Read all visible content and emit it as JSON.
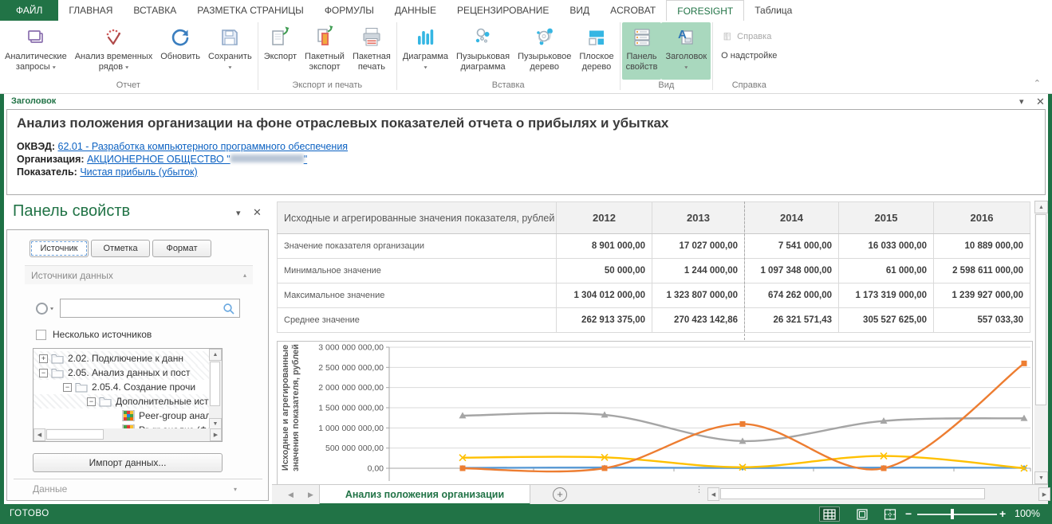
{
  "ribbon_tabs": [
    {
      "label": "ФАЙЛ",
      "style": "file"
    },
    {
      "label": "ГЛАВНАЯ"
    },
    {
      "label": "ВСТАВКА"
    },
    {
      "label": "РАЗМЕТКА СТРАНИЦЫ"
    },
    {
      "label": "ФОРМУЛЫ"
    },
    {
      "label": "ДАННЫЕ"
    },
    {
      "label": "РЕЦЕНЗИРОВАНИЕ"
    },
    {
      "label": "ВИД"
    },
    {
      "label": "ACROBAT"
    },
    {
      "label": "FORESIGHT",
      "active": true
    },
    {
      "label": "Таблица"
    }
  ],
  "ribbon_groups": [
    {
      "label": "Отчет",
      "buttons": [
        {
          "name": "analytic-queries",
          "icon": "analytic-queries",
          "lines": [
            "Аналитические",
            "запросы"
          ],
          "dropdown": "inline"
        },
        {
          "name": "time-series",
          "icon": "time-series",
          "lines": [
            "Анализ временных",
            "рядов"
          ],
          "dropdown": "inline"
        },
        {
          "name": "refresh",
          "icon": "refresh",
          "lines": [
            "Обновить"
          ]
        },
        {
          "name": "save",
          "icon": "save",
          "lines": [
            "Сохранить"
          ],
          "dropdown": "below"
        }
      ]
    },
    {
      "label": "Экспорт и печать",
      "buttons": [
        {
          "name": "export",
          "icon": "export",
          "lines": [
            "Экспорт"
          ]
        },
        {
          "name": "batch-export",
          "icon": "batch-export",
          "lines": [
            "Пакетный",
            "экспорт"
          ]
        },
        {
          "name": "batch-print",
          "icon": "batch-print",
          "lines": [
            "Пакетная",
            "печать"
          ]
        }
      ]
    },
    {
      "label": "Вставка",
      "buttons": [
        {
          "name": "chart",
          "icon": "chart",
          "lines": [
            "Диаграмма"
          ],
          "dropdown": "below"
        },
        {
          "name": "bubble-chart",
          "icon": "bubble-chart",
          "lines": [
            "Пузырьковая",
            "диаграмма"
          ]
        },
        {
          "name": "bubble-tree",
          "icon": "bubble-tree",
          "lines": [
            "Пузырьковое",
            "дерево"
          ]
        },
        {
          "name": "flat-tree",
          "icon": "flat-tree",
          "lines": [
            "Плоское",
            "дерево"
          ]
        }
      ]
    },
    {
      "label": "Вид",
      "buttons": [
        {
          "name": "props-panel",
          "icon": "props-panel",
          "lines": [
            "Панель",
            "свойств"
          ],
          "active": true
        },
        {
          "name": "header",
          "icon": "header",
          "lines": [
            "Заголовок"
          ],
          "active": true,
          "dropdown": "below"
        }
      ]
    },
    {
      "label": "Справка",
      "small": true,
      "buttons": [
        {
          "name": "help",
          "icon": "help",
          "lines": [
            "Справка"
          ],
          "disabled": true
        },
        {
          "name": "about",
          "lines": [
            "О надстройке"
          ]
        }
      ]
    }
  ],
  "header_panel": {
    "cap": "Заголовок",
    "title": "Анализ положения организации на фоне отраслевых показателей отчета о прибылях и убытках",
    "fields": [
      {
        "label": "ОКВЭД:",
        "link": "62.01 - Разработка компьютерного программного обеспечения"
      },
      {
        "label": "Организация:",
        "link": "АКЦИОНЕРНОЕ ОБЩЕСТВО \"",
        "masked": true,
        "link_suffix": "\""
      },
      {
        "label": "Показатель:",
        "link": "Чистая прибыль (убыток)"
      }
    ]
  },
  "props_panel": {
    "title": "Панель свойств",
    "tabs": [
      {
        "label": "Источник",
        "active": true
      },
      {
        "label": "Отметка"
      },
      {
        "label": "Формат"
      }
    ],
    "section": "Источники данных",
    "search_placeholder": "",
    "multi_source_label": "Несколько источников",
    "multi_source_checked": false,
    "tree": [
      {
        "level": 0,
        "expand": "+",
        "icon": "folder",
        "label": "2.02. Подключение к данн",
        "hatched": true
      },
      {
        "level": 0,
        "expand": "-",
        "icon": "folder",
        "label": "2.05. Анализ данных и пост",
        "hatched": true
      },
      {
        "level": 1,
        "expand": "-",
        "icon": "folder",
        "label": "2.05.4. Создание прочи"
      },
      {
        "level": 2,
        "expand": "-",
        "icon": "folder",
        "label": "Дополнительные ист",
        "hatched": true
      },
      {
        "level": 3,
        "icon": "mosaic",
        "label": "Peer-group анали"
      },
      {
        "level": 3,
        "icon": "mosaic",
        "label": "Pr-gr анализ (Фор"
      }
    ],
    "import_button": "Импорт данных...",
    "footer_section": "Данные"
  },
  "table": {
    "header": [
      "Исходные и агрегированные значения показателя, рублей",
      "2012",
      "2013",
      "2014",
      "2015",
      "2016"
    ],
    "rows": [
      [
        "Значение показателя организации",
        "8 901 000,00",
        "17 027 000,00",
        "7 541 000,00",
        "16 033 000,00",
        "10 889 000,00"
      ],
      [
        "Минимальное значение",
        "50 000,00",
        "1 244 000,00",
        "1 097 348 000,00",
        "61 000,00",
        "2 598 611 000,00"
      ],
      [
        "Максимальное значение",
        "1 304 012 000,00",
        "1 323 807 000,00",
        "674 262 000,00",
        "1 173 319 000,00",
        "1 239 927 000,00"
      ],
      [
        "Среднее значение",
        "262 913 375,00",
        "270 423 142,86",
        "26 321 571,43",
        "305 527 625,00",
        "557 033,30"
      ]
    ]
  },
  "chart_data": {
    "type": "line",
    "smooth": true,
    "x": [
      "2012",
      "2013",
      "2014",
      "2015",
      "2016"
    ],
    "series": [
      {
        "name": "Значение показателя организации",
        "color": "#5B9BD5",
        "marker": "diamond",
        "values": [
          8901000,
          17027000,
          7541000,
          16033000,
          10889000
        ]
      },
      {
        "name": "Минимальное значение",
        "color": "#ED7D31",
        "marker": "square",
        "values": [
          50000,
          1244000,
          1097348000,
          61000,
          2598611000
        ]
      },
      {
        "name": "Максимальное значение",
        "color": "#A5A5A5",
        "marker": "triangle",
        "values": [
          1304012000,
          1323807000,
          674262000,
          1173319000,
          1239927000
        ]
      },
      {
        "name": "Среднее значение",
        "color": "#FFC000",
        "marker": "x",
        "values": [
          262913375,
          270423142.86,
          26321571.43,
          305527625,
          557033.3
        ]
      }
    ],
    "ylabel": "Исходные и агрегированные значения показателя, рублей",
    "ylim": [
      0,
      3000000000
    ],
    "yticks": [
      "0,00",
      "500 000 000,00",
      "1 000 000 000,00",
      "1 500 000 000,00",
      "2 000 000 000,00",
      "2 500 000 000,00",
      "3 000 000 000,00"
    ],
    "legend": "none",
    "gridlines": true
  },
  "sheet_bar": {
    "tabs": [
      {
        "label": "Анализ положения организации",
        "active": true
      }
    ]
  },
  "status_bar": {
    "ready": "ГОТОВО",
    "zoom": "100%"
  }
}
